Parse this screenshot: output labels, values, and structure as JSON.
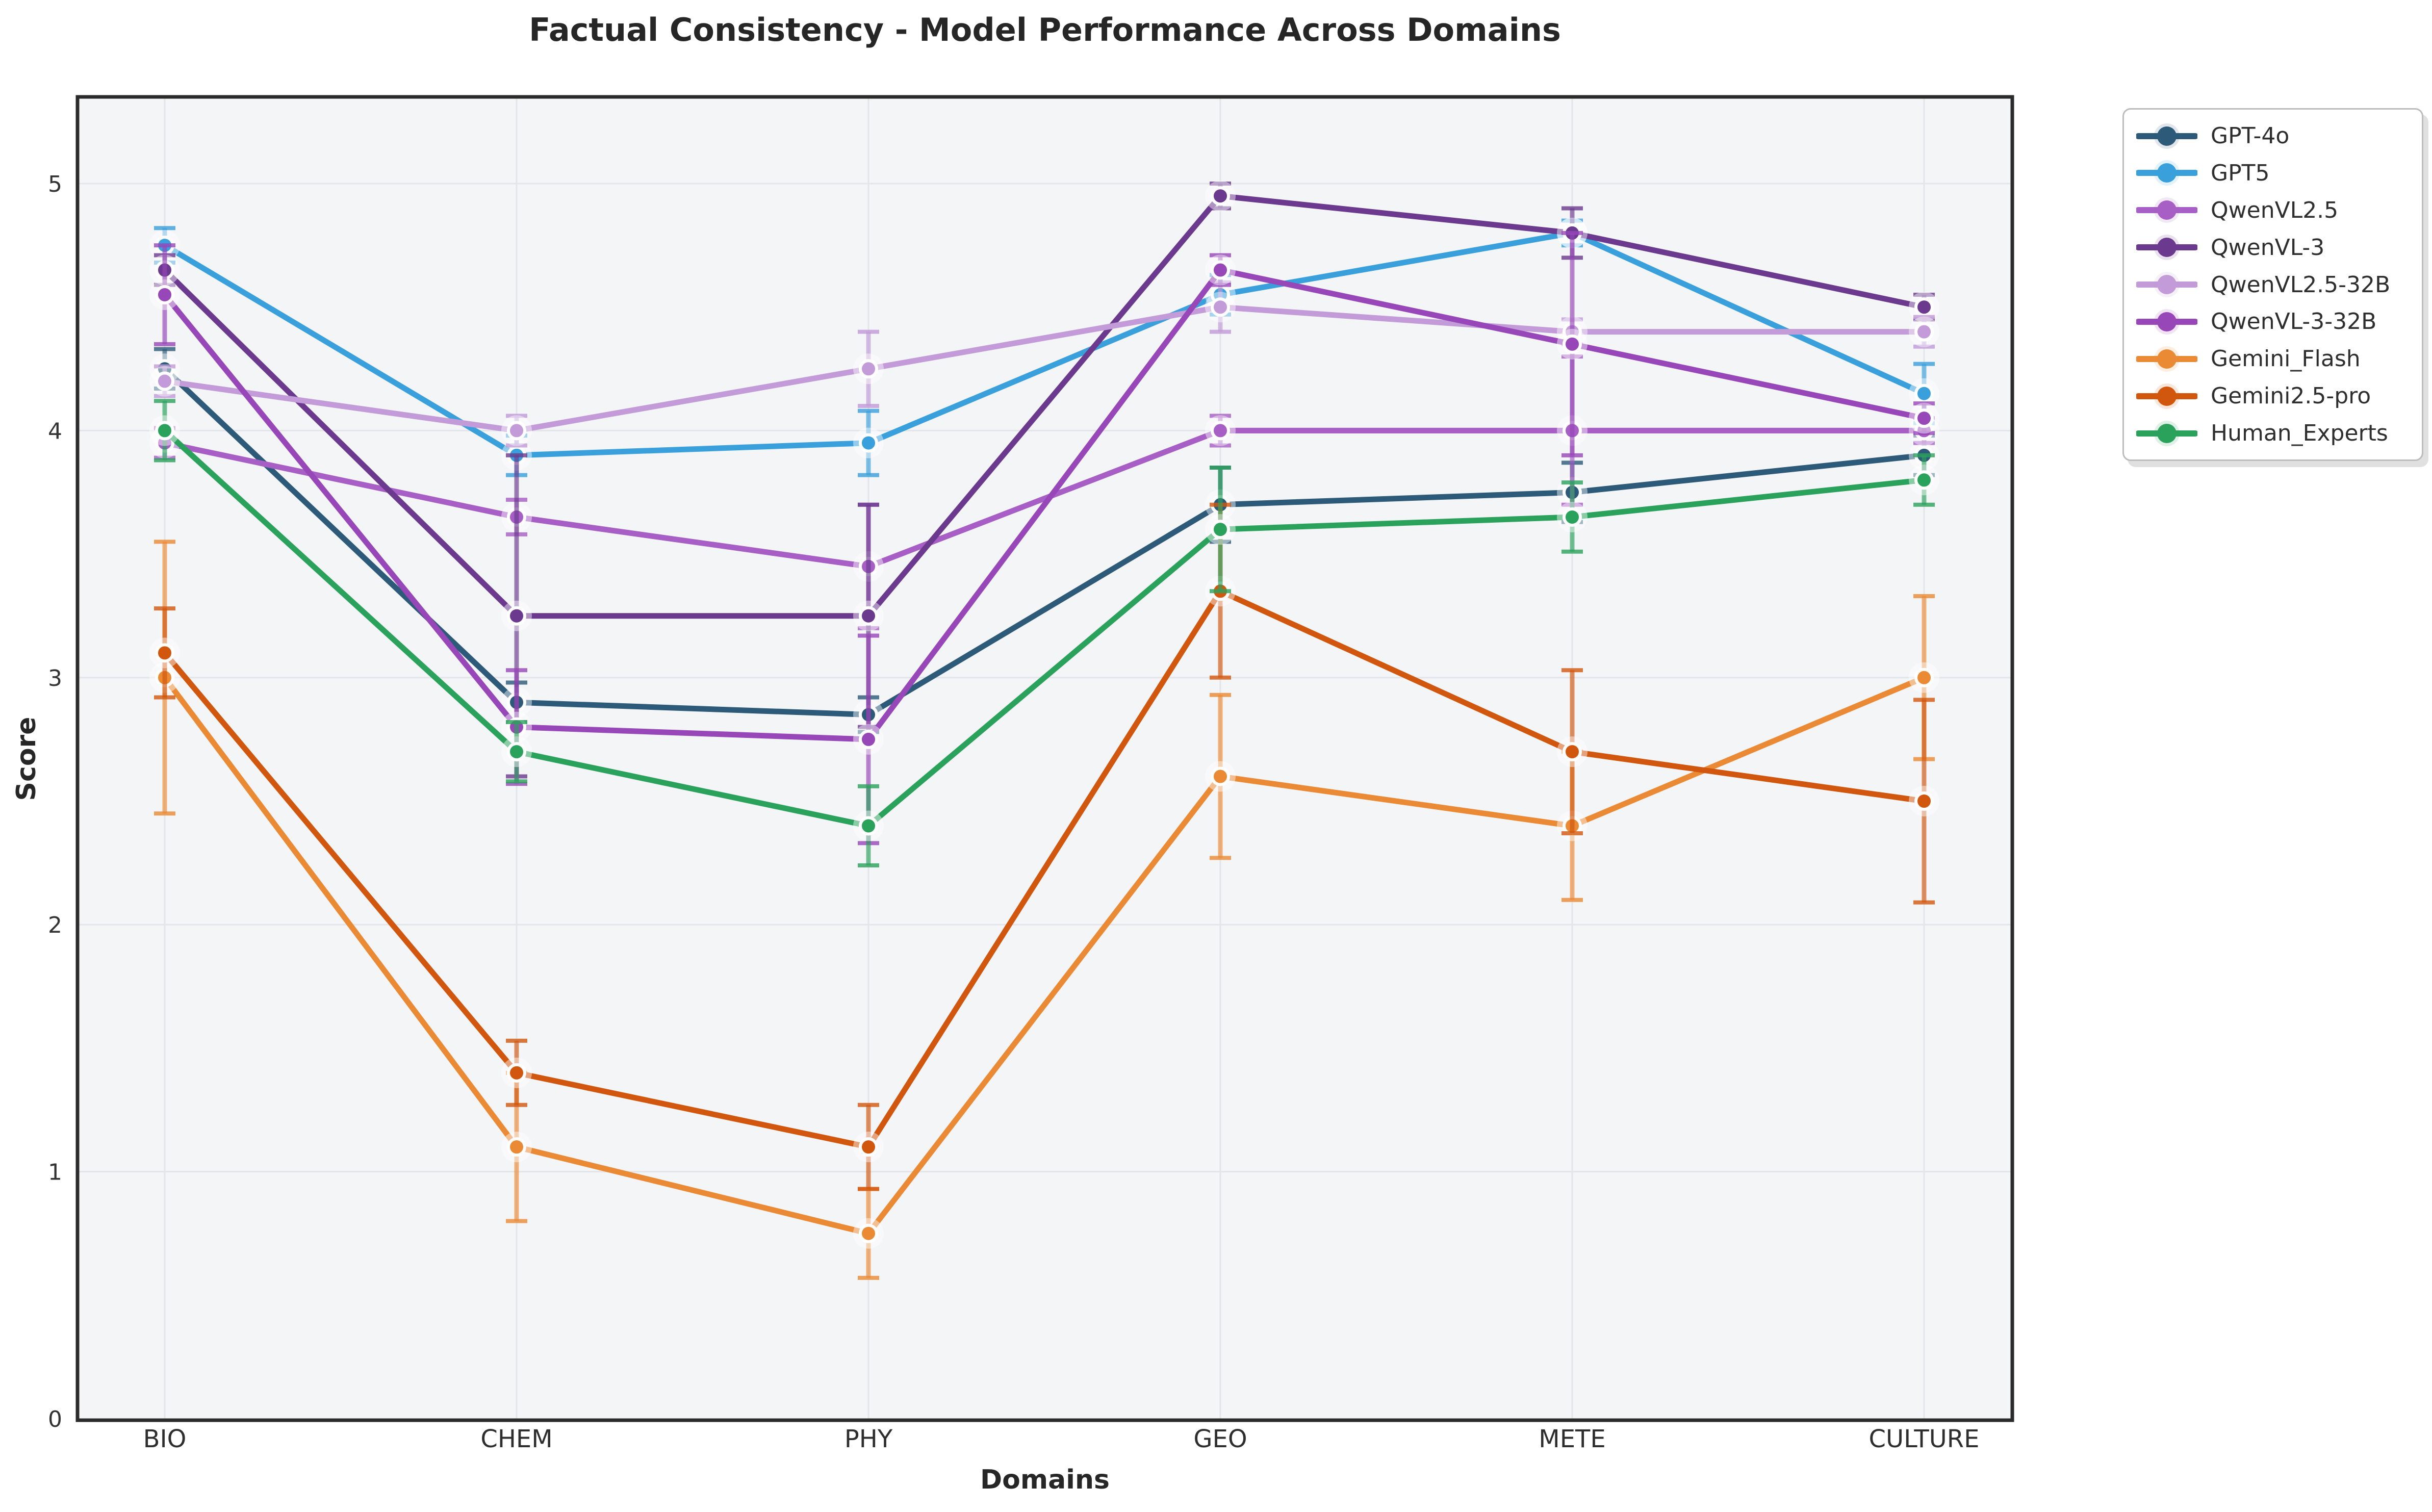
{
  "title": "Factual Consistency - Model Performance Across Domains",
  "axes": {
    "x_label": "Domains",
    "y_label": "Score",
    "y_tick_labels": [
      "0",
      "1",
      "2",
      "3",
      "4",
      "5"
    ],
    "x_tick_labels": [
      "BIO",
      "CHEM",
      "PHY",
      "GEO",
      "METE",
      "CULTURE"
    ]
  },
  "chart_data": {
    "type": "line",
    "title": "Factual Consistency - Model Performance Across Domains",
    "xlabel": "Domains",
    "ylabel": "Score",
    "categories": [
      "BIO",
      "CHEM",
      "PHY",
      "GEO",
      "METE",
      "CULTURE"
    ],
    "ylim": [
      0,
      5.35
    ],
    "yticks": [
      0,
      1,
      2,
      3,
      4,
      5
    ],
    "grid": true,
    "error_bars": true,
    "legend_position": "outside-top-right",
    "series": [
      {
        "name": "GPT-4o",
        "color": "#2c5a78",
        "values": [
          4.25,
          2.9,
          2.85,
          3.7,
          3.75,
          3.9
        ],
        "errors": [
          0.08,
          0.08,
          0.07,
          0.15,
          0.12,
          0.08
        ]
      },
      {
        "name": "GPT5",
        "color": "#3aa0dc",
        "values": [
          4.75,
          3.9,
          3.95,
          4.55,
          4.8,
          4.15
        ],
        "errors": [
          0.07,
          0.08,
          0.13,
          0.08,
          0.05,
          0.12
        ]
      },
      {
        "name": "QwenVL2.5",
        "color": "#a75fc5",
        "values": [
          3.95,
          3.65,
          3.45,
          4.0,
          4.0,
          4.0
        ],
        "errors": [
          0.06,
          0.07,
          0.25,
          0.06,
          0.3,
          0.05
        ]
      },
      {
        "name": "QwenVL-3",
        "color": "#6b3a8e",
        "values": [
          4.65,
          3.25,
          3.25,
          4.95,
          4.8,
          4.5
        ],
        "errors": [
          0.06,
          0.65,
          0.45,
          0.05,
          0.1,
          0.05
        ]
      },
      {
        "name": "QwenVL2.5-32B",
        "color": "#c29bd8",
        "values": [
          4.2,
          4.0,
          4.25,
          4.5,
          4.4,
          4.4
        ],
        "errors": [
          0.06,
          0.06,
          0.15,
          0.1,
          0.05,
          0.06
        ]
      },
      {
        "name": "QwenVL-3-32B",
        "color": "#9747b8",
        "values": [
          4.55,
          2.8,
          2.75,
          4.65,
          4.35,
          4.05
        ],
        "errors": [
          0.2,
          0.23,
          0.42,
          0.06,
          0.45,
          0.06
        ]
      },
      {
        "name": "Gemini_Flash",
        "color": "#eb8a35",
        "values": [
          3.0,
          1.1,
          0.75,
          2.6,
          2.4,
          3.0
        ],
        "errors": [
          0.55,
          0.3,
          0.18,
          0.33,
          0.3,
          0.33
        ]
      },
      {
        "name": "Gemini2.5-pro",
        "color": "#d2570e",
        "values": [
          3.1,
          1.4,
          1.1,
          3.35,
          2.7,
          2.5
        ],
        "errors": [
          0.18,
          0.13,
          0.17,
          0.35,
          0.33,
          0.41
        ]
      },
      {
        "name": "Human_Experts",
        "color": "#2ba25c",
        "values": [
          4.0,
          2.7,
          2.4,
          3.6,
          3.65,
          3.8
        ],
        "errors": [
          0.12,
          0.12,
          0.16,
          0.25,
          0.14,
          0.1
        ]
      }
    ]
  },
  "style_colors": {
    "plot_background": "#f4f5f7",
    "gridline": "#e3e5e8",
    "spine": "#2b2b2b",
    "tick_text": "#333333",
    "legend_border": "#bcbcbc"
  }
}
